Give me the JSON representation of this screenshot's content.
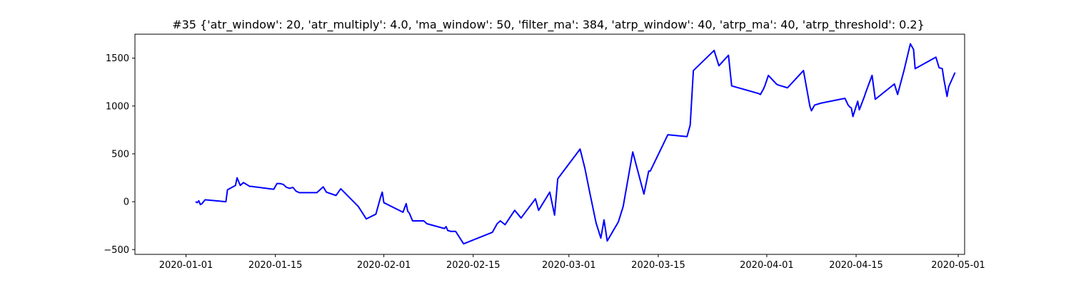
{
  "chart_data": {
    "type": "line",
    "title": "#35 {'atr_window': 20, 'atr_multiply': 4.0, 'ma_window': 50, 'filter_ma': 384, 'atrp_window': 40, 'atrp_ma': 40, 'atrp_threshold': 0.2}",
    "xlabel": "",
    "ylabel": "",
    "x_axis_type": "date",
    "xlim": [
      "2019-12-24",
      "2020-05-02"
    ],
    "ylim": [
      -550,
      1750
    ],
    "grid": false,
    "x_ticks": [
      "2020-01-01",
      "2020-01-15",
      "2020-02-01",
      "2020-02-15",
      "2020-03-01",
      "2020-03-15",
      "2020-04-01",
      "2020-04-15",
      "2020-05-01"
    ],
    "y_ticks": [
      -500,
      0,
      500,
      1000,
      1500
    ],
    "series": [
      {
        "color": "#0000ff",
        "x": [
          "2020-01-02 12:00",
          "2020-01-02 18:00",
          "2020-01-03 00:00",
          "2020-01-03 06:00",
          "2020-01-03 12:00",
          "2020-01-04 00:00",
          "2020-01-07 06:00",
          "2020-01-07 12:00",
          "2020-01-08 18:00",
          "2020-01-09 00:00",
          "2020-01-09 12:00",
          "2020-01-10 00:00",
          "2020-01-10 12:00",
          "2020-01-11 00:00",
          "2020-01-11 06:00",
          "2020-01-14 18:00",
          "2020-01-15 06:00",
          "2020-01-15 18:00",
          "2020-01-16 06:00",
          "2020-01-16 18:00",
          "2020-01-17 06:00",
          "2020-01-17 18:00",
          "2020-01-18 06:00",
          "2020-01-18 18:00",
          "2020-01-21 12:00",
          "2020-01-22 12:00",
          "2020-01-23 00:00",
          "2020-01-24 12:00",
          "2020-01-25 06:00",
          "2020-01-28 00:00",
          "2020-01-29 06:00",
          "2020-01-30 18:00",
          "2020-01-31 12:00",
          "2020-01-31 18:00",
          "2020-02-01 00:00",
          "2020-02-04 00:00",
          "2020-02-04 12:00",
          "2020-02-04 18:00",
          "2020-02-05 00:00",
          "2020-02-05 12:00",
          "2020-02-06 18:00",
          "2020-02-07 06:00",
          "2020-02-07 18:00",
          "2020-02-10 12:00",
          "2020-02-10 18:00",
          "2020-02-11 00:00",
          "2020-02-11 12:00",
          "2020-02-12 06:00",
          "2020-02-13 12:00",
          "2020-02-18 00:00",
          "2020-02-18 18:00",
          "2020-02-19 06:00",
          "2020-02-20 00:00",
          "2020-02-21 12:00",
          "2020-02-22 12:00",
          "2020-02-24 18:00",
          "2020-02-25 06:00",
          "2020-02-27 00:00",
          "2020-02-27 18:00",
          "2020-02-28 06:00",
          "2020-03-02 18:00",
          "2020-03-03 12:00",
          "2020-03-04 06:00",
          "2020-03-05 06:00",
          "2020-03-06 00:00",
          "2020-03-06 12:00",
          "2020-03-07 00:00",
          "2020-03-08 18:00",
          "2020-03-09 12:00",
          "2020-03-11 00:00",
          "2020-03-12 18:00",
          "2020-03-13 12:00",
          "2020-03-13 18:00",
          "2020-03-16 12:00",
          "2020-03-19 12:00",
          "2020-03-20 00:00",
          "2020-03-20 12:00",
          "2020-03-23 18:00",
          "2020-03-24 12:00",
          "2020-03-26 00:00",
          "2020-03-26 12:00",
          "2020-03-30 18:00",
          "2020-03-31 00:00",
          "2020-03-31 12:00",
          "2020-03-31 18:00",
          "2020-04-01 06:00",
          "2020-04-02 12:00",
          "2020-04-02 18:00",
          "2020-04-04 06:00",
          "2020-04-06 18:00",
          "2020-04-07 18:00",
          "2020-04-08 00:00",
          "2020-04-08 12:00",
          "2020-04-09 12:00",
          "2020-04-13 06:00",
          "2020-04-13 18:00",
          "2020-04-14 00:00",
          "2020-04-14 06:00",
          "2020-04-14 12:00",
          "2020-04-15 06:00",
          "2020-04-15 12:00",
          "2020-04-16 06:00",
          "2020-04-16 12:00",
          "2020-04-17 12:00",
          "2020-04-18 00:00",
          "2020-04-21 00:00",
          "2020-04-21 12:00",
          "2020-04-22 12:00",
          "2020-04-23 12:00",
          "2020-04-24 00:00",
          "2020-04-24 06:00",
          "2020-04-27 12:00",
          "2020-04-28 00:00",
          "2020-04-28 12:00",
          "2020-04-28 18:00",
          "2020-04-29 06:00",
          "2020-04-29 12:00",
          "2020-04-30 12:00"
        ],
        "y": [
          0,
          -10,
          10,
          -30,
          -20,
          20,
          0,
          125,
          170,
          250,
          170,
          200,
          180,
          160,
          160,
          130,
          190,
          190,
          180,
          150,
          140,
          150,
          110,
          95,
          95,
          155,
          100,
          65,
          135,
          -50,
          -180,
          -130,
          50,
          100,
          -10,
          -110,
          -20,
          -100,
          -120,
          -200,
          -200,
          -200,
          -230,
          -280,
          -260,
          -300,
          -310,
          -310,
          -440,
          -320,
          -230,
          -200,
          -240,
          -90,
          -170,
          30,
          -90,
          100,
          -140,
          240,
          550,
          350,
          100,
          -220,
          -380,
          -190,
          -410,
          -210,
          -50,
          520,
          80,
          320,
          320,
          700,
          680,
          800,
          1370,
          1580,
          1420,
          1530,
          1210,
          1130,
          1120,
          1180,
          1220,
          1320,
          1230,
          1220,
          1190,
          1370,
          1000,
          950,
          1010,
          1030,
          1080,
          1010,
          990,
          980,
          890,
          1050,
          960,
          1090,
          1140,
          1320,
          1070,
          1230,
          1120,
          1370,
          1650,
          1590,
          1390,
          1510,
          1400,
          1390,
          1280,
          1100,
          1200,
          1350
        ]
      }
    ]
  }
}
